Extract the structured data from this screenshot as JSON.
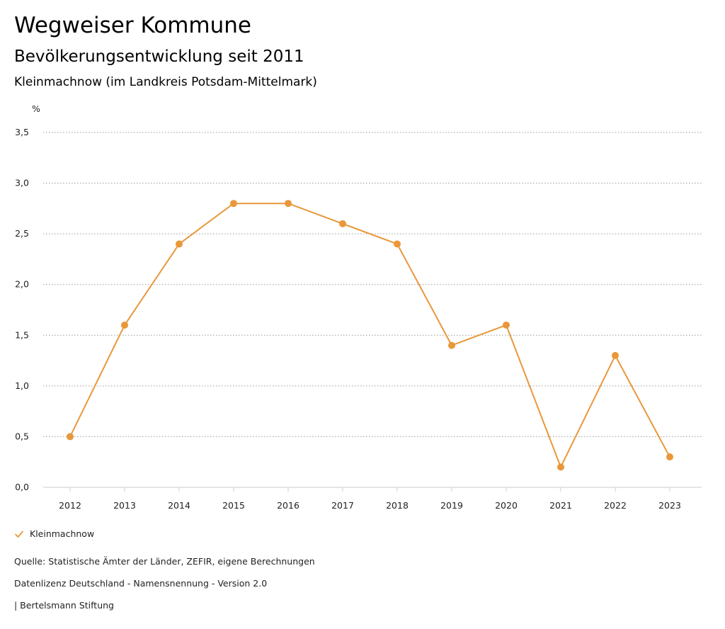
{
  "header": {
    "title": "Wegweiser Kommune",
    "subtitle": "Bevölkerungsentwicklung seit 2011",
    "region": "Kleinmachnow (im Landkreis Potsdam-Mittelmark)"
  },
  "chart_data": {
    "type": "line",
    "unit_label": "%",
    "x": [
      "2012",
      "2013",
      "2014",
      "2015",
      "2016",
      "2017",
      "2018",
      "2019",
      "2020",
      "2021",
      "2022",
      "2023"
    ],
    "series": [
      {
        "name": "Kleinmachnow",
        "values": [
          0.5,
          1.6,
          2.4,
          2.8,
          2.8,
          2.6,
          2.4,
          1.4,
          1.6,
          0.2,
          1.3,
          0.3
        ],
        "color": "#E8983A"
      }
    ],
    "ylim": [
      0,
      3.5
    ],
    "y_ticks": [
      0,
      0.5,
      1.0,
      1.5,
      2.0,
      2.5,
      3.0,
      3.5
    ],
    "y_tick_labels": [
      "0,0",
      "0,5",
      "1,0",
      "1,5",
      "2,0",
      "2,5",
      "3,0",
      "3,5"
    ],
    "grid": true,
    "legend_position": "bottom-left"
  },
  "legend": {
    "items": [
      {
        "label": "Kleinmachnow",
        "icon": "checkmark-icon",
        "color": "#E8983A"
      }
    ]
  },
  "footer": {
    "source": "Quelle: Statistische Ämter der Länder, ZEFIR, eigene Berechnungen",
    "license": "Datenlizenz Deutschland - Namensnennung - Version 2.0",
    "credit": "| Bertelsmann Stiftung"
  },
  "colors": {
    "grid": "#9a9a9a",
    "axis": "#cccccc",
    "text": "#222222"
  }
}
